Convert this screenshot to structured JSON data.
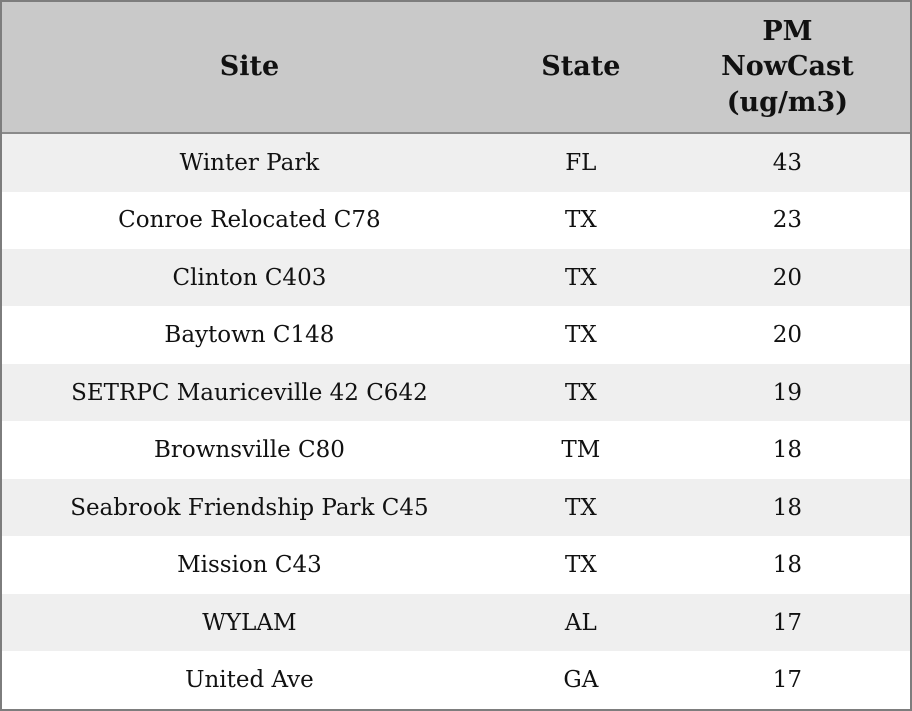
{
  "table": {
    "headers": {
      "site": "Site",
      "state": "State",
      "pm": "PM\nNowCast\n(ug/m3)"
    },
    "rows": [
      {
        "site": "Winter Park",
        "state": "FL",
        "pm": "43"
      },
      {
        "site": "Conroe Relocated C78",
        "state": "TX",
        "pm": "23"
      },
      {
        "site": "Clinton C403",
        "state": "TX",
        "pm": "20"
      },
      {
        "site": "Baytown C148",
        "state": "TX",
        "pm": "20"
      },
      {
        "site": "SETRPC Mauriceville 42 C642",
        "state": "TX",
        "pm": "19"
      },
      {
        "site": "Brownsville C80",
        "state": "TM",
        "pm": "18"
      },
      {
        "site": "Seabrook Friendship Park C45",
        "state": "TX",
        "pm": "18"
      },
      {
        "site": "Mission C43",
        "state": "TX",
        "pm": "18"
      },
      {
        "site": "WYLAM",
        "state": "AL",
        "pm": "17"
      },
      {
        "site": "United Ave",
        "state": "GA",
        "pm": "17"
      }
    ],
    "colors": {
      "header_bg": "#c9c9c9",
      "odd_row_bg": "#efefef",
      "even_row_bg": "#ffffff",
      "border": "#7d7d7d",
      "text": "#111111"
    }
  },
  "chart_data": {
    "type": "table",
    "columns": [
      "Site",
      "State",
      "PM NowCast (ug/m3)"
    ],
    "rows": [
      [
        "Winter Park",
        "FL",
        43
      ],
      [
        "Conroe Relocated C78",
        "TX",
        23
      ],
      [
        "Clinton C403",
        "TX",
        20
      ],
      [
        "Baytown C148",
        "TX",
        20
      ],
      [
        "SETRPC Mauriceville 42 C642",
        "TX",
        19
      ],
      [
        "Brownsville C80",
        "TM",
        18
      ],
      [
        "Seabrook Friendship Park C45",
        "TX",
        18
      ],
      [
        "Mission C43",
        "TX",
        18
      ],
      [
        "WYLAM",
        "AL",
        17
      ],
      [
        "United Ave",
        "GA",
        17
      ]
    ],
    "title": "",
    "legend": "none",
    "grid": "off"
  }
}
